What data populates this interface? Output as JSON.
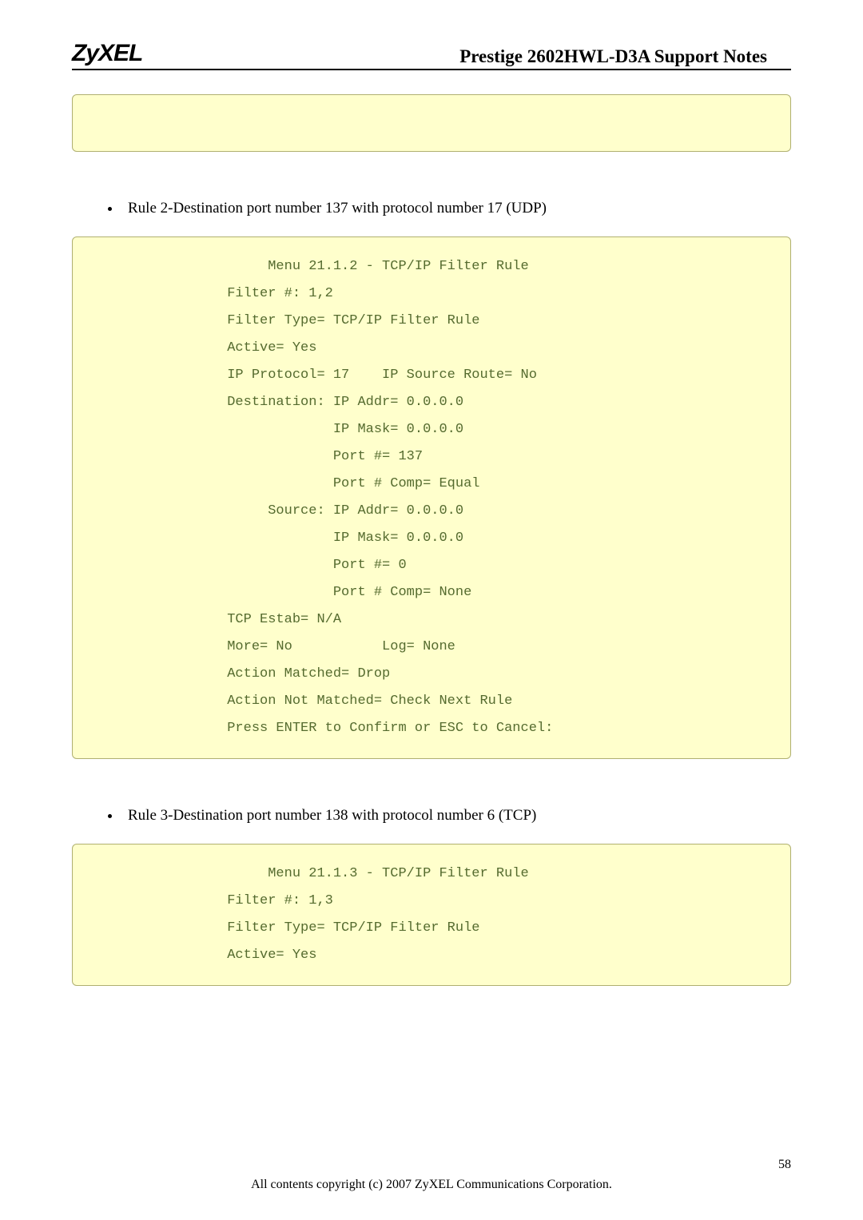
{
  "header": {
    "logo": "ZyXEL",
    "title": "Prestige 2602HWL-D3A Support Notes"
  },
  "bullets": {
    "rule2": "Rule 2-Destination port number 137 with protocol number 17 (UDP)",
    "rule3": "Rule 3-Destination port number 138 with protocol number 6 (TCP)"
  },
  "code1": "                     Menu 21.1.2 - TCP/IP Filter Rule\n                Filter #: 1,2\n                Filter Type= TCP/IP Filter Rule\n                Active= Yes\n                IP Protocol= 17    IP Source Route= No\n                Destination: IP Addr= 0.0.0.0\n                             IP Mask= 0.0.0.0\n                             Port #= 137\n                             Port # Comp= Equal\n                     Source: IP Addr= 0.0.0.0\n                             IP Mask= 0.0.0.0\n                             Port #= 0\n                             Port # Comp= None\n                TCP Estab= N/A\n                More= No           Log= None\n                Action Matched= Drop\n                Action Not Matched= Check Next Rule\n                Press ENTER to Confirm or ESC to Cancel:",
  "code2": "                     Menu 21.1.3 - TCP/IP Filter Rule\n                Filter #: 1,3\n                Filter Type= TCP/IP Filter Rule\n                Active= Yes",
  "footer": {
    "copyright": "All contents copyright (c) 2007 ZyXEL Communications Corporation.",
    "page": "58"
  },
  "styles": {
    "page_bg": "#ffffff",
    "codebox_bg": "#ffffcc",
    "codebox_border": "#b0b070",
    "code_text_color": "#556b2f",
    "body_text_color": "#000000",
    "code_font_size": 17,
    "body_font_size": 19,
    "header_title_size": 23,
    "logo_size": 30
  }
}
